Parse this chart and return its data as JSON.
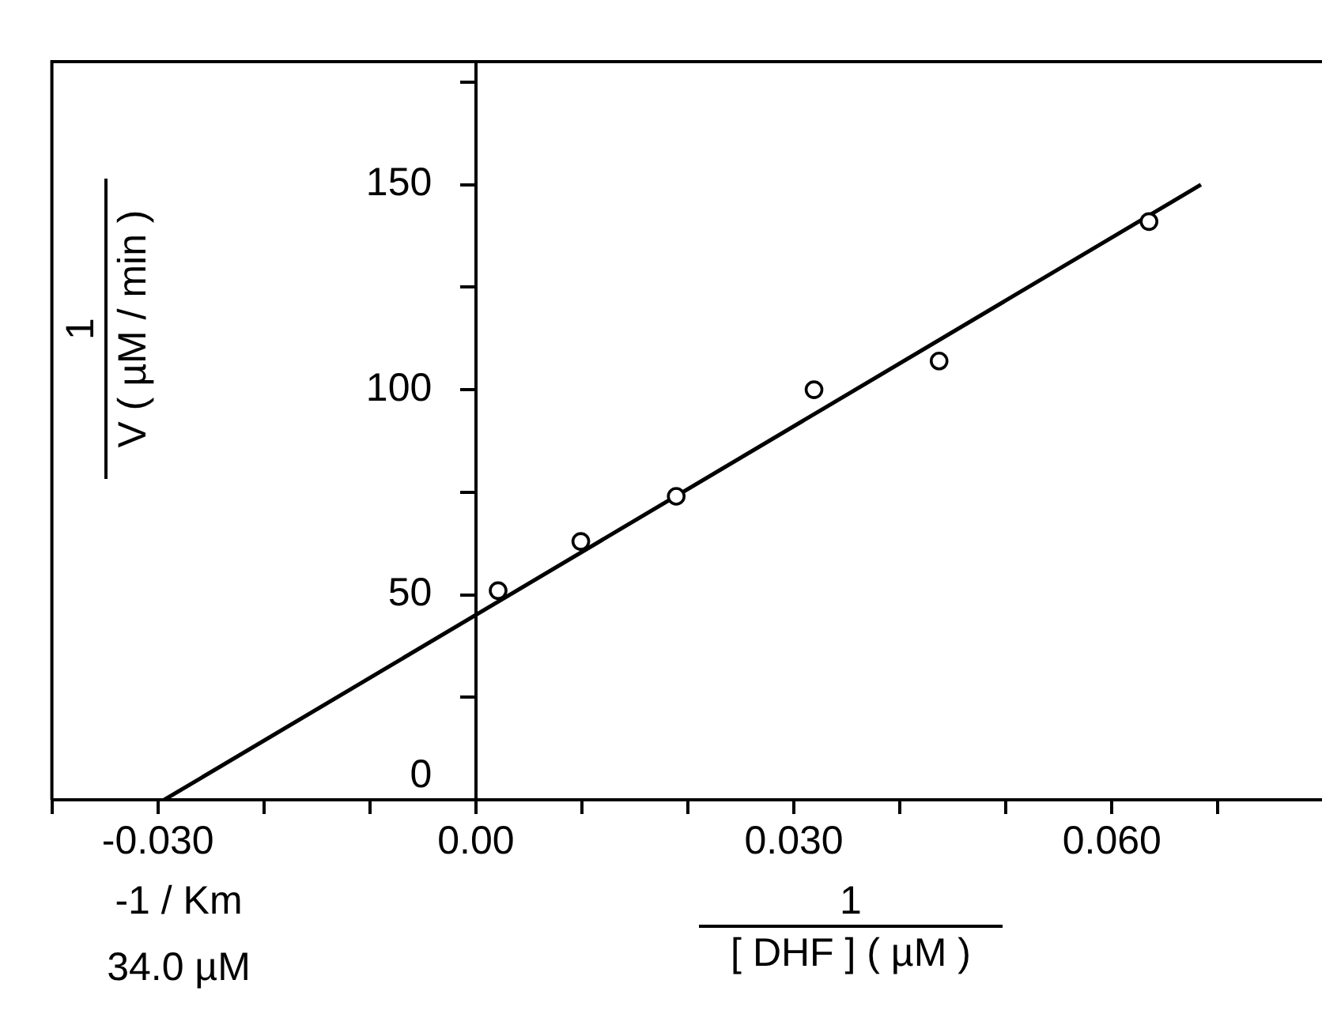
{
  "chart_data": {
    "type": "scatter",
    "xlabel": "1\n[ DHF ] ( µM )",
    "ylabel": "1\nV ( µM / min )",
    "annotations": [
      "-1 / Km",
      "34.0 µM"
    ],
    "series": [
      {
        "color": "#000000",
        "marker": "circle",
        "x": [
          0.0021,
          0.0099,
          0.0189,
          0.0319,
          0.0437,
          0.0635
        ],
        "values": [
          51,
          63,
          74,
          100,
          107,
          141
        ]
      },
      {
        "type": "line",
        "color": "#000000",
        "marker": "none",
        "x": [
          -0.0294,
          0.0684
        ],
        "values": [
          0,
          150
        ]
      }
    ],
    "xlim": [
      -0.04,
      0.08
    ],
    "xticks": [
      {
        "value": -0.04,
        "label": null
      },
      {
        "value": -0.03,
        "label": "-0.030"
      },
      {
        "value": -0.02,
        "label": null
      },
      {
        "value": -0.01,
        "label": null
      },
      {
        "value": 0,
        "label": "0.00"
      },
      {
        "value": 0.01,
        "label": null
      },
      {
        "value": 0.02,
        "label": null
      },
      {
        "value": 0.03,
        "label": "0.030"
      },
      {
        "value": 0.04,
        "label": null
      },
      {
        "value": 0.05,
        "label": null
      },
      {
        "value": 0.06,
        "label": "0.060"
      },
      {
        "value": 0.07,
        "label": null
      },
      {
        "value": 0.08,
        "label": null
      }
    ],
    "ylim": [
      0,
      180
    ],
    "yticks": [
      0,
      {
        "value": 25,
        "label": null
      },
      50,
      {
        "value": 75,
        "label": null
      },
      100,
      {
        "value": 125,
        "label": null
      },
      150,
      {
        "value": 175,
        "label": null
      }
    ]
  }
}
